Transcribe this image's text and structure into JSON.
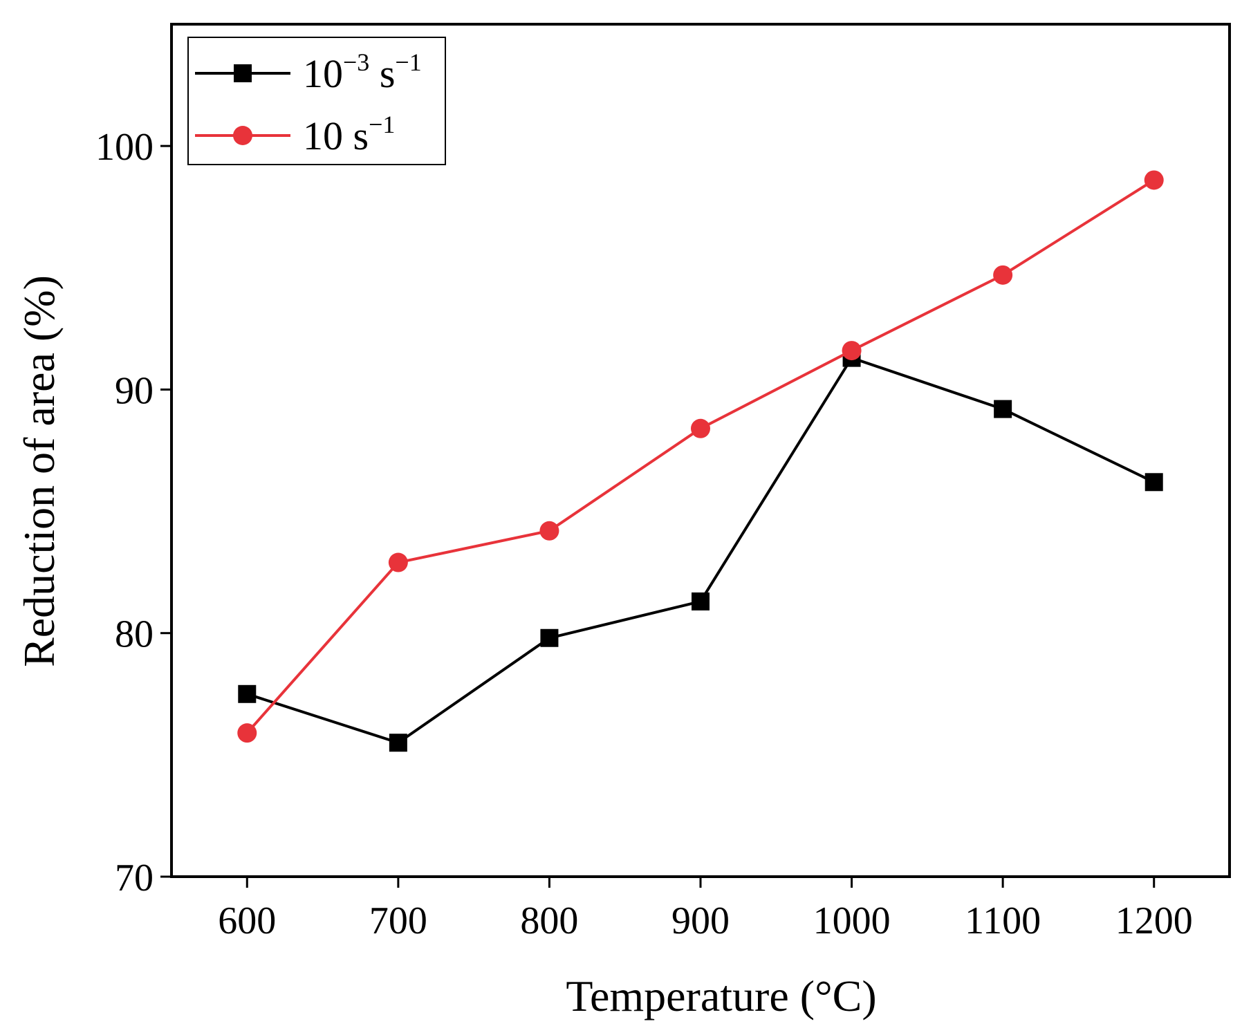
{
  "chart_data": {
    "type": "line",
    "title": "",
    "xlabel": "Temperature (°C)",
    "ylabel": "Reduction of area (%)",
    "x": [
      600,
      700,
      800,
      900,
      1000,
      1100,
      1200
    ],
    "x_tick_labels": [
      "600",
      "700",
      "800",
      "900",
      "1000",
      "1100",
      "1200"
    ],
    "y_tick_labels": [
      "70",
      "80",
      "90",
      "100"
    ],
    "xlim": [
      550,
      1250
    ],
    "ylim": [
      70,
      105
    ],
    "grid": false,
    "legend_position": "top-left",
    "series": [
      {
        "name": "10⁻³ s⁻¹",
        "legend_base": "10",
        "legend_exp": "−3",
        "legend_unit": "s",
        "legend_unit_exp": "−1",
        "marker": "square",
        "color": "#000000",
        "values": [
          77.5,
          75.5,
          79.8,
          81.3,
          91.3,
          89.2,
          86.2
        ]
      },
      {
        "name": "10 s⁻¹",
        "legend_base": "10 s",
        "legend_unit_exp": "−1",
        "marker": "circle",
        "color": "#e8333a",
        "values": [
          75.9,
          82.9,
          84.2,
          88.4,
          91.6,
          94.7,
          98.6
        ]
      }
    ]
  }
}
